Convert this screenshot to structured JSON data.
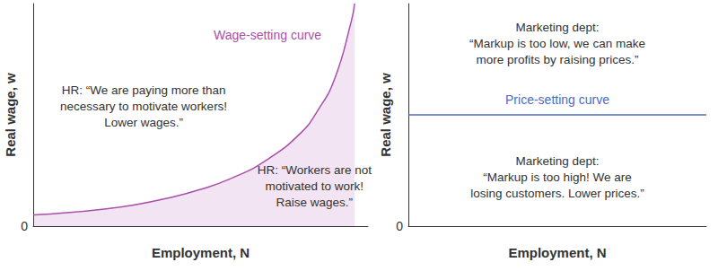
{
  "chart_data": [
    {
      "type": "area",
      "xlabel": "Employment, N",
      "ylabel": "Real wage, w",
      "x": [
        0,
        1,
        2,
        3,
        4,
        5,
        6,
        7,
        8,
        8.5,
        9,
        9.5,
        9.6
      ],
      "series": [
        {
          "name": "Wage-setting curve",
          "color": "#a94fa8",
          "values": [
            0.5,
            0.6,
            0.75,
            0.95,
            1.25,
            1.65,
            2.2,
            3.0,
            4.2,
            5.2,
            6.6,
            9.2,
            10
          ]
        }
      ],
      "xlim": [
        0,
        10
      ],
      "ylim": [
        0,
        10
      ],
      "yticks": [
        0
      ],
      "tick_labels": "y",
      "grid": false,
      "annotations": [
        "HR: “We are paying more than\nnecessary to motivate workers!\nLower wages.”",
        "HR: “Workers are not\nmotivated to work!\nRaise wages.”"
      ]
    },
    {
      "type": "line",
      "xlabel": "Employment, N",
      "ylabel": "Real wage, w",
      "x": [
        0,
        10
      ],
      "series": [
        {
          "name": "Price-setting curve",
          "color": "#4a6cc4",
          "values": [
            5,
            5
          ]
        }
      ],
      "xlim": [
        0,
        10
      ],
      "ylim": [
        0,
        10
      ],
      "yticks": [
        0
      ],
      "tick_labels": "y",
      "grid": false,
      "annotations": [
        "Marketing dept:\n“Markup is too low, we can make\nmore profits by raising prices.”",
        "Marketing dept:\n“Markup is too high! We are\nlosing customers. Lower prices.”"
      ]
    }
  ]
}
